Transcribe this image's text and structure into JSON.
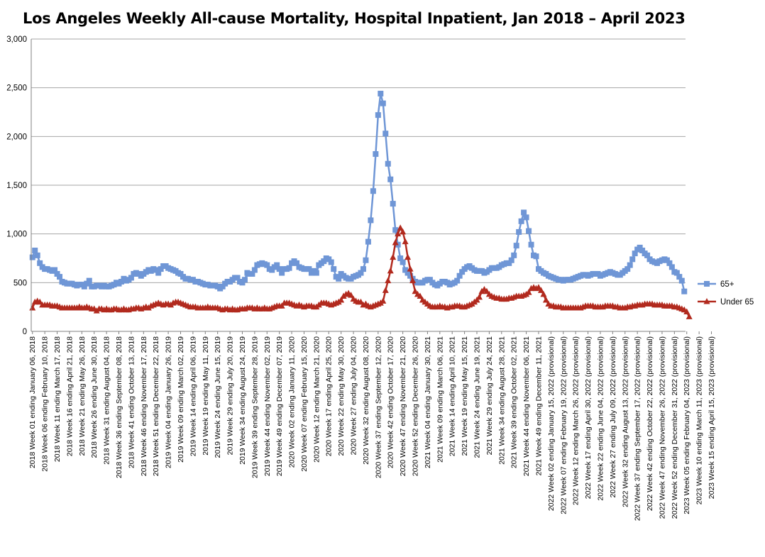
{
  "chart_data": {
    "type": "line",
    "title": "Los Angeles Weekly All-cause Mortality, Hospital Inpatient, Jan 2018 – April 2023",
    "xlabel": "",
    "ylabel": "",
    "ylim": [
      0,
      3000
    ],
    "yticks": [
      "0",
      "500",
      "1,000",
      "1,500",
      "2,000",
      "2,500",
      "3,000"
    ],
    "grid": true,
    "legend": "right",
    "x_tick_labels": [
      "2018 Week 01 ending January 06, 2018",
      "2018 Week 06 ending February 10, 2018",
      "2018 Week 11 ending March 17, 2018",
      "2018 Week 16 ending April 21, 2018",
      "2018 Week 21 ending May 26, 2018",
      "2018 Week 26 ending June 30, 2018",
      "2018 Week 31 ending August 04, 2018",
      "2018 Week 36 ending September 08, 2018",
      "2018 Week 41 ending October 13, 2018",
      "2018 Week 46 ending November 17, 2018",
      "2018 Week 51 ending December 22, 2018",
      "2019 Week 04 ending January 26, 2019",
      "2019 Week 09 ending March 02, 2019",
      "2019 Week 14 ending April 06, 2019",
      "2019 Week 19 ending May 11, 2019",
      "2019 Week 24 ending June 15, 2019",
      "2019 Week 29 ending July 20, 2019",
      "2019 Week 34 ending August 24, 2019",
      "2019 Week 39 ending September 28, 2019",
      "2019 Week 44 ending November 02, 2019",
      "2019 Week 49 ending December 07, 2019",
      "2020 Week 02 ending January 11, 2020",
      "2020 Week 07 ending February 15, 2020",
      "2020 Week 12 ending March 21, 2020",
      "2020 Week 17 ending April 25, 2020",
      "2020 Week 22 ending May 30, 2020",
      "2020 Week 27 ending July 04, 2020",
      "2020 Week 32 ending August 08, 2020",
      "2020 Week 37 ending September 12, 2020",
      "2020 Week 42 ending October 17, 2020",
      "2020 Week 47 ending November 21, 2020",
      "2020 Week 52 ending December 26, 2020",
      "2021 Week 04 ending January 30, 2021",
      "2021 Week 09 ending March 06, 2021",
      "2021 Week 14 ending April 10, 2021",
      "2021 Week 19 ending May 15, 2021",
      "2021 Week 24 ending June 19, 2021",
      "2021 Week 29 ending July 24, 2021",
      "2021 Week 34 ending August 28, 2021",
      "2021 Week 39 ending October 02, 2021",
      "2021 Week 44 ending November 06, 2021",
      "2021 Week 49 ending December 11, 2021",
      "2022 Week 02 ending January 15, 2022 (provisional)",
      "2022 Week 07 ending February 19, 2022 (provisional)",
      "2022 Week 12 ending March 26, 2022 (provisional)",
      "2022 Week 17 ending April 30, 2022 (provisional)",
      "2022 Week 22 ending June 04, 2022 (provisional)",
      "2022 Week 27 ending July 09, 2022 (provisional)",
      "2022 Week 32 ending August 13, 2022 (provisional)",
      "2022 Week 37 ending September 17, 2022 (provisional)",
      "2022 Week 42 ending October 22, 2022 (provisional)",
      "2022 Week 47 ending November 26, 2022 (provisional)",
      "2022 Week 52 ending December 31, 2022 (provisional)",
      "2023 Week 05 ending February 04, 2023 (provisional)",
      "2023 Week 10 ending March 11, 2023 (provisional)",
      "2023 Week 15 ending April 15, 2023 (provisional)"
    ],
    "series": [
      {
        "name": "65+",
        "color": "#6f96d6",
        "marker": "square",
        "values": [
          760,
          830,
          780,
          700,
          660,
          640,
          640,
          630,
          620,
          630,
          590,
          560,
          510,
          500,
          490,
          490,
          490,
          480,
          470,
          480,
          480,
          460,
          490,
          520,
          460,
          460,
          470,
          470,
          460,
          470,
          460,
          460,
          470,
          480,
          500,
          490,
          510,
          540,
          520,
          530,
          550,
          590,
          600,
          590,
          570,
          590,
          610,
          630,
          620,
          640,
          630,
          600,
          640,
          670,
          670,
          650,
          640,
          630,
          620,
          600,
          590,
          560,
          540,
          540,
          530,
          530,
          510,
          510,
          500,
          490,
          480,
          480,
          470,
          470,
          470,
          460,
          440,
          460,
          490,
          510,
          510,
          530,
          550,
          550,
          510,
          500,
          530,
          600,
          590,
          590,
          630,
          680,
          690,
          700,
          690,
          680,
          640,
          630,
          660,
          680,
          640,
          600,
          640,
          640,
          650,
          700,
          720,
          700,
          660,
          650,
          640,
          640,
          640,
          600,
          620,
          600,
          680,
          700,
          720,
          750,
          740,
          710,
          640,
          560,
          540,
          590,
          570,
          550,
          540,
          540,
          560,
          570,
          580,
          600,
          640,
          730,
          920,
          1140,
          1440,
          1820,
          2220,
          2440,
          2340,
          2030,
          1720,
          1560,
          1310,
          1040,
          890,
          750,
          710,
          630,
          600,
          570,
          540,
          510,
          500,
          500,
          500,
          520,
          530,
          530,
          500,
          480,
          470,
          490,
          510,
          510,
          500,
          480,
          490,
          500,
          520,
          570,
          610,
          640,
          660,
          670,
          650,
          630,
          620,
          620,
          620,
          600,
          610,
          630,
          650,
          650,
          650,
          660,
          680,
          690,
          700,
          700,
          730,
          780,
          880,
          1020,
          1130,
          1220,
          1170,
          1030,
          890,
          780,
          770,
          640,
          620,
          600,
          590,
          570,
          560,
          550,
          540,
          530,
          530,
          520,
          530,
          530,
          530,
          540,
          550,
          560,
          570,
          580,
          580,
          570,
          580,
          590,
          590,
          590,
          570,
          580,
          590,
          600,
          610,
          600,
          590,
          580,
          580,
          600,
          620,
          640,
          680,
          740,
          800,
          840,
          860,
          830,
          800,
          780,
          740,
          720,
          710,
          700,
          720,
          730,
          740,
          730,
          700,
          660,
          610,
          600,
          560,
          520,
          410
        ]
      },
      {
        "name": "Under 65",
        "color": "#b22a1e",
        "marker": "triangle",
        "values": [
          240,
          300,
          310,
          300,
          270,
          270,
          270,
          270,
          260,
          260,
          260,
          250,
          240,
          240,
          240,
          240,
          240,
          240,
          240,
          250,
          240,
          240,
          250,
          240,
          230,
          230,
          210,
          230,
          230,
          220,
          230,
          220,
          220,
          230,
          230,
          220,
          220,
          230,
          220,
          220,
          230,
          230,
          240,
          240,
          230,
          240,
          250,
          240,
          260,
          270,
          280,
          290,
          280,
          270,
          280,
          280,
          270,
          290,
          300,
          300,
          290,
          280,
          270,
          260,
          250,
          250,
          250,
          240,
          240,
          240,
          240,
          250,
          240,
          240,
          240,
          240,
          230,
          220,
          230,
          230,
          220,
          230,
          220,
          220,
          230,
          230,
          230,
          240,
          240,
          240,
          230,
          240,
          230,
          230,
          240,
          230,
          230,
          240,
          250,
          260,
          260,
          260,
          290,
          290,
          290,
          280,
          270,
          260,
          270,
          260,
          250,
          260,
          260,
          260,
          250,
          250,
          270,
          290,
          290,
          290,
          280,
          270,
          280,
          290,
          300,
          320,
          360,
          380,
          390,
          370,
          330,
          310,
          300,
          300,
          270,
          280,
          260,
          250,
          260,
          270,
          280,
          290,
          310,
          420,
          520,
          620,
          760,
          910,
          1000,
          1060,
          1020,
          920,
          760,
          640,
          520,
          410,
          380,
          360,
          320,
          300,
          280,
          260,
          250,
          250,
          250,
          260,
          250,
          250,
          240,
          250,
          250,
          260,
          260,
          260,
          250,
          250,
          260,
          270,
          280,
          300,
          320,
          350,
          410,
          430,
          410,
          380,
          360,
          350,
          340,
          340,
          330,
          330,
          330,
          340,
          340,
          350,
          360,
          360,
          360,
          370,
          380,
          400,
          440,
          450,
          440,
          450,
          420,
          380,
          320,
          280,
          260,
          260,
          250,
          250,
          250,
          240,
          240,
          240,
          240,
          240,
          240,
          240,
          240,
          250,
          260,
          260,
          260,
          260,
          250,
          250,
          250,
          250,
          260,
          260,
          260,
          260,
          250,
          250,
          240,
          240,
          240,
          250,
          250,
          260,
          260,
          270,
          270,
          270,
          280,
          280,
          280,
          280,
          270,
          270,
          270,
          270,
          260,
          260,
          260,
          260,
          250,
          250,
          240,
          230,
          220,
          200,
          150
        ]
      }
    ]
  }
}
